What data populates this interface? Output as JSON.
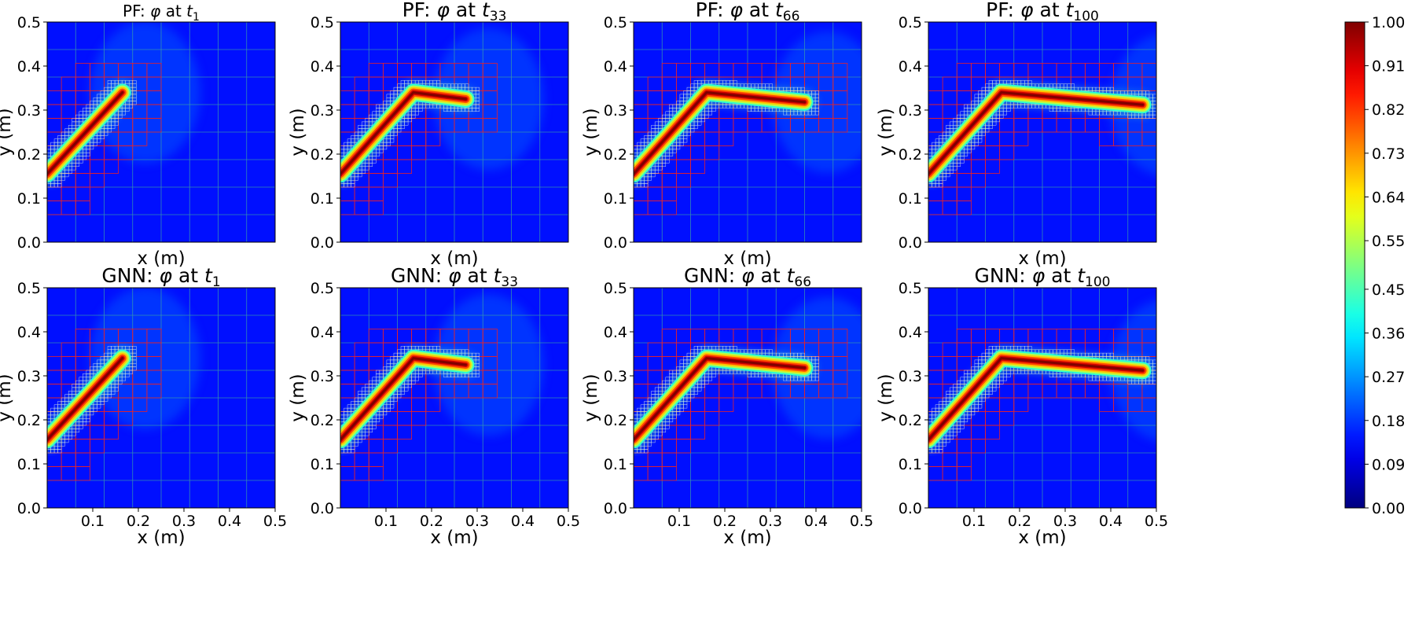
{
  "figure": {
    "colorbar": {
      "min": 0.0,
      "max": 1.0,
      "tick_labels": [
        "0.00",
        "0.09",
        "0.18",
        "0.27",
        "0.36",
        "0.45",
        "0.55",
        "0.64",
        "0.73",
        "0.82",
        "0.91",
        "1.00"
      ],
      "tick_values": [
        0.0,
        0.09,
        0.18,
        0.27,
        0.36,
        0.45,
        0.55,
        0.64,
        0.73,
        0.82,
        0.91,
        1.0
      ],
      "colormap": "jet"
    }
  },
  "chart_data": [
    {
      "type": "heatmap",
      "model": "PF",
      "title_prefix": "PF: ",
      "title_mid": " at ",
      "symbol": "φ",
      "t_var": "t",
      "t_sub": "1",
      "xlabel": "x (m)",
      "ylabel": "y (m)",
      "xlim": [
        0,
        0.5
      ],
      "ylim": [
        0,
        0.5
      ],
      "xticks": [],
      "xtick_labels": [],
      "yticks": [
        0,
        0.1,
        0.2,
        0.3,
        0.4,
        0.5
      ],
      "ytick_labels": [
        "0.0",
        "0.1",
        "0.2",
        "0.3",
        "0.4",
        "0.5"
      ],
      "crack_path": [
        [
          0.0,
          0.155
        ],
        [
          0.165,
          0.34
        ]
      ]
    },
    {
      "type": "heatmap",
      "model": "PF",
      "title_prefix": "PF: ",
      "title_mid": " at ",
      "symbol": "φ",
      "t_var": "t",
      "t_sub": "33",
      "xlabel": "x (m)",
      "ylabel": "y (m)",
      "xlim": [
        0,
        0.5
      ],
      "ylim": [
        0,
        0.5
      ],
      "xticks": [],
      "xtick_labels": [],
      "yticks": [
        0,
        0.1,
        0.2,
        0.3,
        0.4,
        0.5
      ],
      "ytick_labels": [
        "0.0",
        "0.1",
        "0.2",
        "0.3",
        "0.4",
        "0.5"
      ],
      "crack_path": [
        [
          0.0,
          0.155
        ],
        [
          0.16,
          0.34
        ],
        [
          0.275,
          0.325
        ]
      ]
    },
    {
      "type": "heatmap",
      "model": "PF",
      "title_prefix": "PF: ",
      "title_mid": " at ",
      "symbol": "φ",
      "t_var": "t",
      "t_sub": "66",
      "xlabel": "x (m)",
      "ylabel": "y (m)",
      "xlim": [
        0,
        0.5
      ],
      "ylim": [
        0,
        0.5
      ],
      "xticks": [],
      "xtick_labels": [],
      "yticks": [
        0,
        0.1,
        0.2,
        0.3,
        0.4,
        0.5
      ],
      "ytick_labels": [
        "0.0",
        "0.1",
        "0.2",
        "0.3",
        "0.4",
        "0.5"
      ],
      "crack_path": [
        [
          0.0,
          0.155
        ],
        [
          0.16,
          0.34
        ],
        [
          0.375,
          0.318
        ]
      ]
    },
    {
      "type": "heatmap",
      "model": "PF",
      "title_prefix": "PF: ",
      "title_mid": " at ",
      "symbol": "φ",
      "t_var": "t",
      "t_sub": "100",
      "xlabel": "x (m)",
      "ylabel": "y (m)",
      "xlim": [
        0,
        0.5
      ],
      "ylim": [
        0,
        0.5
      ],
      "xticks": [],
      "xtick_labels": [],
      "yticks": [
        0,
        0.1,
        0.2,
        0.3,
        0.4,
        0.5
      ],
      "ytick_labels": [
        "0.0",
        "0.1",
        "0.2",
        "0.3",
        "0.4",
        "0.5"
      ],
      "crack_path": [
        [
          0.0,
          0.155
        ],
        [
          0.16,
          0.34
        ],
        [
          0.47,
          0.312
        ]
      ]
    },
    {
      "type": "heatmap",
      "model": "GNN",
      "title_prefix": "GNN: ",
      "title_mid": " at ",
      "symbol": "φ",
      "t_var": "t",
      "t_sub": "1",
      "xlabel": "x (m)",
      "ylabel": "y (m)",
      "xlim": [
        0,
        0.5
      ],
      "ylim": [
        0,
        0.5
      ],
      "xticks": [
        0.1,
        0.2,
        0.3,
        0.4,
        0.5
      ],
      "xtick_labels": [
        "0.1",
        "0.2",
        "0.3",
        "0.4",
        "0.5"
      ],
      "yticks": [
        0,
        0.1,
        0.2,
        0.3,
        0.4,
        0.5
      ],
      "ytick_labels": [
        "0.0",
        "0.1",
        "0.2",
        "0.3",
        "0.4",
        "0.5"
      ],
      "crack_path": [
        [
          0.0,
          0.155
        ],
        [
          0.165,
          0.34
        ]
      ]
    },
    {
      "type": "heatmap",
      "model": "GNN",
      "title_prefix": "GNN: ",
      "title_mid": " at ",
      "symbol": "φ",
      "t_var": "t",
      "t_sub": "33",
      "xlabel": "x (m)",
      "ylabel": "y (m)",
      "xlim": [
        0,
        0.5
      ],
      "ylim": [
        0,
        0.5
      ],
      "xticks": [
        0.1,
        0.2,
        0.3,
        0.4,
        0.5
      ],
      "xtick_labels": [
        "0.1",
        "0.2",
        "0.3",
        "0.4",
        "0.5"
      ],
      "yticks": [
        0,
        0.1,
        0.2,
        0.3,
        0.4,
        0.5
      ],
      "ytick_labels": [
        "0.0",
        "0.1",
        "0.2",
        "0.3",
        "0.4",
        "0.5"
      ],
      "crack_path": [
        [
          0.0,
          0.155
        ],
        [
          0.16,
          0.34
        ],
        [
          0.275,
          0.325
        ]
      ]
    },
    {
      "type": "heatmap",
      "model": "GNN",
      "title_prefix": "GNN: ",
      "title_mid": " at ",
      "symbol": "φ",
      "t_var": "t",
      "t_sub": "66",
      "xlabel": "x (m)",
      "ylabel": "y (m)",
      "xlim": [
        0,
        0.5
      ],
      "ylim": [
        0,
        0.5
      ],
      "xticks": [
        0.1,
        0.2,
        0.3,
        0.4,
        0.5
      ],
      "xtick_labels": [
        "0.1",
        "0.2",
        "0.3",
        "0.4",
        "0.5"
      ],
      "yticks": [
        0,
        0.1,
        0.2,
        0.3,
        0.4,
        0.5
      ],
      "ytick_labels": [
        "0.0",
        "0.1",
        "0.2",
        "0.3",
        "0.4",
        "0.5"
      ],
      "crack_path": [
        [
          0.0,
          0.155
        ],
        [
          0.16,
          0.34
        ],
        [
          0.375,
          0.318
        ]
      ]
    },
    {
      "type": "heatmap",
      "model": "GNN",
      "title_prefix": "GNN: ",
      "title_mid": " at ",
      "symbol": "φ",
      "t_var": "t",
      "t_sub": "100",
      "xlabel": "x (m)",
      "ylabel": "y (m)",
      "xlim": [
        0,
        0.5
      ],
      "ylim": [
        0,
        0.5
      ],
      "xticks": [
        0.1,
        0.2,
        0.3,
        0.4,
        0.5
      ],
      "xtick_labels": [
        "0.1",
        "0.2",
        "0.3",
        "0.4",
        "0.5"
      ],
      "yticks": [
        0,
        0.1,
        0.2,
        0.3,
        0.4,
        0.5
      ],
      "ytick_labels": [
        "0.0",
        "0.1",
        "0.2",
        "0.3",
        "0.4",
        "0.5"
      ],
      "crack_path": [
        [
          0.0,
          0.155
        ],
        [
          0.16,
          0.34
        ],
        [
          0.47,
          0.312
        ]
      ]
    }
  ]
}
